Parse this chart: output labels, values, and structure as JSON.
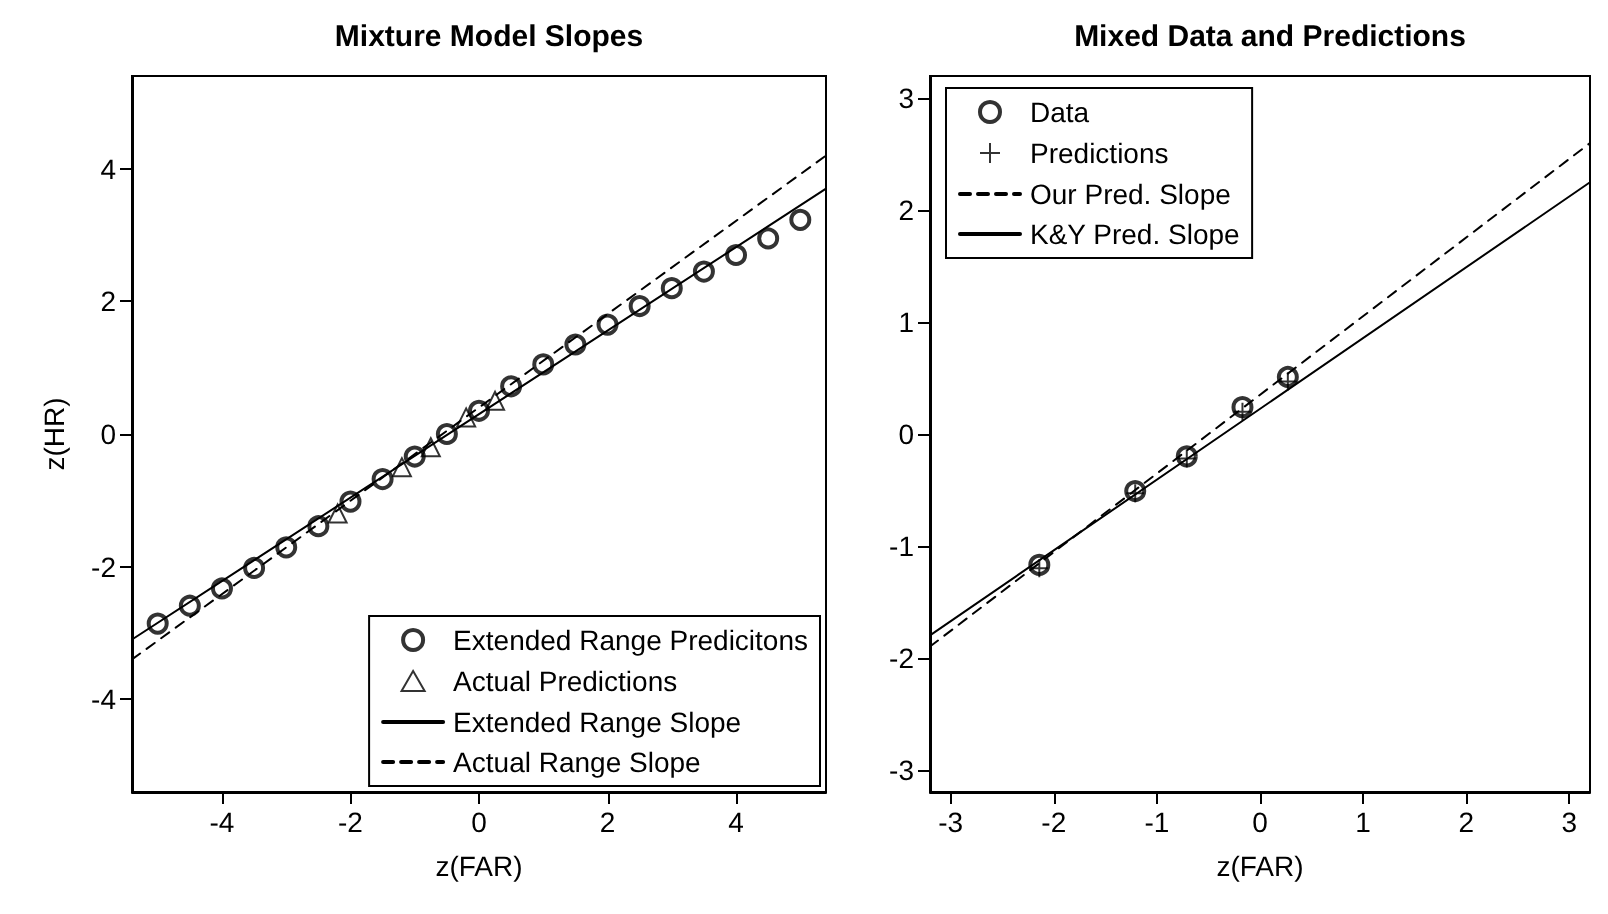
{
  "chart_data": [
    {
      "type": "scatter",
      "title": "Mixture Model Slopes",
      "xlabel": "z(FAR)",
      "ylabel": "z(HR)",
      "xlim": [
        -5.4,
        5.4
      ],
      "ylim": [
        -5.4,
        5.4
      ],
      "xticks": [
        -4,
        -2,
        0,
        2,
        4
      ],
      "yticks": [
        -4,
        -2,
        0,
        2,
        4
      ],
      "legend": "bottom right",
      "series": [
        {
          "name": "Extended Range Predicitons",
          "marker": "circle",
          "color": "#000000",
          "x": [
            -5,
            -4.5,
            -4,
            -3.5,
            -3,
            -2.5,
            -2,
            -1.5,
            -1,
            -0.5,
            0,
            0.5,
            1,
            1.5,
            2,
            2.5,
            3,
            3.5,
            4,
            4.5,
            5
          ],
          "values": [
            -2.86,
            -2.59,
            -2.33,
            -2.02,
            -1.71,
            -1.39,
            -1.02,
            -0.68,
            -0.34,
            0.0,
            0.35,
            0.72,
            1.05,
            1.35,
            1.65,
            1.93,
            2.2,
            2.45,
            2.7,
            2.95,
            3.23
          ]
        },
        {
          "name": "Actual Predictions",
          "marker": "triangle",
          "color": "#000000",
          "x": [
            -2.2,
            -1.2,
            -0.75,
            -0.2,
            0.25
          ],
          "values": [
            -1.2,
            -0.5,
            -0.2,
            0.25,
            0.5
          ]
        },
        {
          "name": "Extended Range Slope",
          "type": "line",
          "marker": "none",
          "line_style": "solid",
          "color": "#000000",
          "x": [
            -5.4,
            5.4
          ],
          "values": [
            -3.1,
            3.7
          ]
        },
        {
          "name": "Actual Range Slope",
          "type": "line",
          "marker": "none",
          "line_style": "dashed",
          "color": "#000000",
          "x": [
            -5.4,
            5.4
          ],
          "values": [
            -3.4,
            4.2
          ]
        }
      ]
    },
    {
      "type": "scatter",
      "title": "Mixed Data and Predictions",
      "xlabel": "z(FAR)",
      "xlim": [
        -3.2,
        3.2
      ],
      "ylim": [
        -3.2,
        3.2
      ],
      "xticks": [
        -3,
        -2,
        -1,
        0,
        1,
        2,
        3
      ],
      "yticks": [
        -3,
        -2,
        -1,
        0,
        1,
        2,
        3
      ],
      "legend": "top left",
      "series": [
        {
          "name": "Data",
          "marker": "circle",
          "color": "#000000",
          "x": [
            -2.14,
            -1.21,
            -0.71,
            -0.17,
            0.27
          ],
          "values": [
            -1.17,
            -0.51,
            -0.2,
            0.24,
            0.51
          ]
        },
        {
          "name": "Predictions",
          "marker": "cross",
          "color": "#000000",
          "x": [
            -2.14,
            -1.21,
            -0.71,
            -0.17,
            0.27
          ],
          "values": [
            -1.2,
            -0.53,
            -0.22,
            0.2,
            0.47
          ]
        },
        {
          "name": "Our Pred. Slope",
          "type": "line",
          "marker": "none",
          "line_style": "dashed",
          "color": "#000000",
          "x": [
            -3.2,
            3.2
          ],
          "values": [
            -1.9,
            2.6
          ]
        },
        {
          "name": "K&Y Pred. Slope",
          "type": "line",
          "marker": "none",
          "line_style": "solid",
          "color": "#000000",
          "x": [
            -3.2,
            3.2
          ],
          "values": [
            -1.8,
            2.25
          ]
        }
      ]
    }
  ]
}
